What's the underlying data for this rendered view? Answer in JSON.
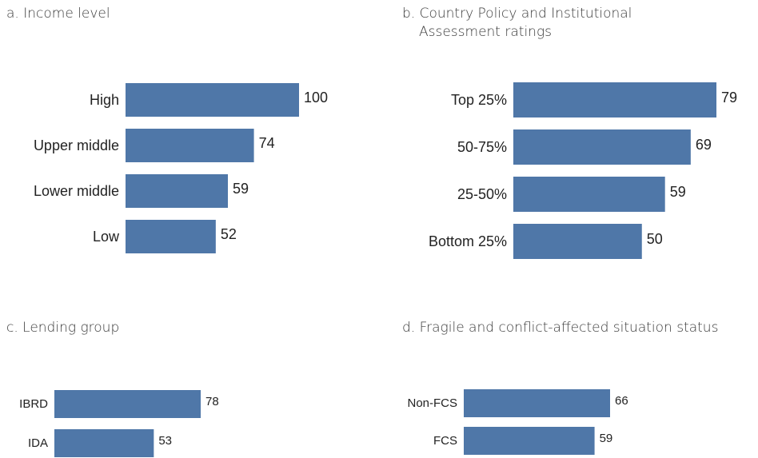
{
  "panels": [
    {
      "title": "a. Income level"
    },
    {
      "title_line1": "b. Country Policy and Institutional",
      "title_line2": "Assessment ratings"
    },
    {
      "title": "c. Lending group"
    },
    {
      "title": "d. Fragile and conflict-affected situation status"
    }
  ],
  "chart_data": [
    {
      "type": "bar",
      "orientation": "horizontal",
      "categories": [
        "High",
        "Upper middle",
        "Lower middle",
        "Low"
      ],
      "values": [
        100,
        74,
        59,
        52
      ],
      "xlim": [
        0,
        100
      ],
      "color": "#4f77a8"
    },
    {
      "type": "bar",
      "orientation": "horizontal",
      "categories": [
        "Top 25%",
        "50-75%",
        "25-50%",
        "Bottom 25%"
      ],
      "values": [
        79,
        69,
        59,
        50
      ],
      "xlim": [
        0,
        79
      ],
      "color": "#4f77a8"
    },
    {
      "type": "bar",
      "orientation": "horizontal",
      "categories": [
        "IBRD",
        "IDA"
      ],
      "values": [
        78,
        53
      ],
      "xlim": [
        0,
        78
      ],
      "color": "#4f77a8"
    },
    {
      "type": "bar",
      "orientation": "horizontal",
      "categories": [
        "Non-FCS",
        "FCS"
      ],
      "values": [
        66,
        59
      ],
      "xlim": [
        0,
        66
      ],
      "color": "#4f77a8"
    }
  ]
}
